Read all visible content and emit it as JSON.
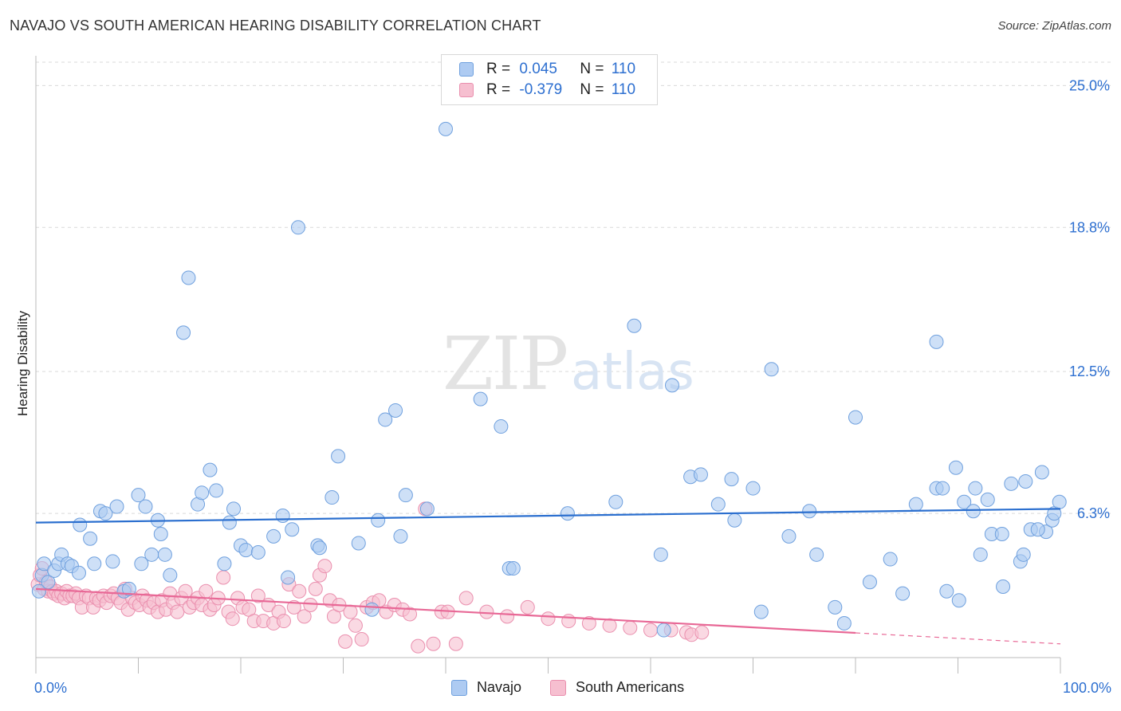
{
  "header": {
    "title": "NAVAJO VS SOUTH AMERICAN HEARING DISABILITY CORRELATION CHART",
    "source": "Source: ZipAtlas.com"
  },
  "watermark": {
    "zip": "ZIP",
    "atlas": "atlas"
  },
  "legend": {
    "rows": [
      {
        "r_label": "R = ",
        "r_value": "0.045",
        "n_label": "N = ",
        "n_value": "110"
      },
      {
        "r_label": "R = ",
        "r_value": "-0.379",
        "n_label": "N = ",
        "n_value": "110"
      }
    ],
    "bottom": [
      "Navajo",
      "South Americans"
    ]
  },
  "colors": {
    "navajo_fill": "#aecbf2",
    "navajo_stroke": "#6fa0de",
    "navajo_line": "#2b6fcf",
    "south_fill": "#f6bfd0",
    "south_stroke": "#ea8fae",
    "south_line": "#e86896",
    "tick_text": "#2d6fd0",
    "grid": "#d9d9d9"
  },
  "chart_data": {
    "type": "scatter",
    "title": "NAVAJO VS SOUTH AMERICAN HEARING DISABILITY CORRELATION CHART",
    "xlabel": "",
    "ylabel": "Hearing Disability",
    "xlim": [
      0,
      100
    ],
    "ylim": [
      0,
      26.3
    ],
    "x_tick_labels": [
      "0.0%",
      "100.0%"
    ],
    "y_ticks": [
      6.3,
      12.5,
      18.8,
      25.0
    ],
    "y_tick_labels": [
      "6.3%",
      "12.5%",
      "18.8%",
      "25.0%"
    ],
    "grid": true,
    "legend_position": "top-center",
    "series": [
      {
        "name": "Navajo",
        "r": 0.045,
        "n": 110,
        "trend": {
          "x": [
            0,
            100
          ],
          "y": [
            5.9,
            6.5
          ],
          "dashed_from": null
        },
        "points": [
          [
            0.3,
            2.9
          ],
          [
            0.6,
            3.6
          ],
          [
            0.8,
            4.1
          ],
          [
            1.2,
            3.3
          ],
          [
            1.8,
            3.8
          ],
          [
            2.2,
            4.1
          ],
          [
            2.5,
            4.5
          ],
          [
            3.1,
            4.1
          ],
          [
            3.5,
            4.0
          ],
          [
            4.2,
            3.7
          ],
          [
            4.3,
            5.8
          ],
          [
            5.3,
            5.2
          ],
          [
            5.7,
            4.1
          ],
          [
            6.3,
            6.4
          ],
          [
            6.8,
            6.3
          ],
          [
            7.5,
            4.2
          ],
          [
            7.9,
            6.6
          ],
          [
            8.6,
            2.9
          ],
          [
            9.1,
            3.0
          ],
          [
            10.0,
            7.1
          ],
          [
            10.3,
            4.1
          ],
          [
            10.7,
            6.6
          ],
          [
            11.3,
            4.5
          ],
          [
            11.9,
            6.0
          ],
          [
            12.2,
            5.4
          ],
          [
            12.6,
            4.5
          ],
          [
            13.1,
            3.6
          ],
          [
            14.4,
            14.2
          ],
          [
            14.9,
            16.6
          ],
          [
            15.8,
            6.7
          ],
          [
            16.2,
            7.2
          ],
          [
            17.0,
            8.2
          ],
          [
            17.6,
            7.3
          ],
          [
            18.4,
            4.1
          ],
          [
            18.9,
            5.9
          ],
          [
            19.3,
            6.5
          ],
          [
            20.0,
            4.9
          ],
          [
            20.5,
            4.7
          ],
          [
            21.7,
            4.6
          ],
          [
            23.2,
            5.3
          ],
          [
            24.1,
            6.2
          ],
          [
            24.6,
            3.5
          ],
          [
            25.0,
            5.6
          ],
          [
            25.6,
            18.8
          ],
          [
            27.5,
            4.9
          ],
          [
            27.7,
            4.8
          ],
          [
            28.9,
            7.0
          ],
          [
            29.5,
            8.8
          ],
          [
            31.5,
            5.0
          ],
          [
            32.8,
            2.1
          ],
          [
            33.4,
            6.0
          ],
          [
            34.1,
            10.4
          ],
          [
            35.1,
            10.8
          ],
          [
            35.6,
            5.3
          ],
          [
            36.1,
            7.1
          ],
          [
            38.2,
            6.5
          ],
          [
            40.0,
            23.1
          ],
          [
            43.4,
            11.3
          ],
          [
            45.4,
            10.1
          ],
          [
            46.2,
            3.9
          ],
          [
            46.6,
            3.9
          ],
          [
            51.9,
            6.3
          ],
          [
            56.6,
            6.8
          ],
          [
            58.4,
            14.5
          ],
          [
            61.0,
            4.5
          ],
          [
            61.3,
            1.2
          ],
          [
            62.1,
            11.9
          ],
          [
            63.9,
            7.9
          ],
          [
            64.9,
            8.0
          ],
          [
            66.6,
            6.7
          ],
          [
            67.9,
            7.8
          ],
          [
            68.2,
            6.0
          ],
          [
            70.0,
            7.4
          ],
          [
            70.8,
            2.0
          ],
          [
            71.8,
            12.6
          ],
          [
            73.5,
            5.3
          ],
          [
            75.5,
            6.4
          ],
          [
            76.2,
            4.5
          ],
          [
            78.0,
            2.2
          ],
          [
            78.9,
            1.5
          ],
          [
            80.0,
            10.5
          ],
          [
            81.4,
            3.3
          ],
          [
            83.4,
            4.3
          ],
          [
            84.6,
            2.8
          ],
          [
            85.9,
            6.7
          ],
          [
            87.9,
            7.4
          ],
          [
            87.9,
            13.8
          ],
          [
            88.5,
            7.4
          ],
          [
            88.9,
            2.9
          ],
          [
            89.8,
            8.3
          ],
          [
            90.1,
            2.5
          ],
          [
            90.6,
            6.8
          ],
          [
            91.5,
            6.4
          ],
          [
            91.7,
            7.4
          ],
          [
            92.2,
            4.5
          ],
          [
            92.9,
            6.9
          ],
          [
            93.3,
            5.4
          ],
          [
            94.3,
            5.4
          ],
          [
            94.4,
            3.1
          ],
          [
            95.2,
            7.6
          ],
          [
            96.1,
            4.2
          ],
          [
            96.4,
            4.5
          ],
          [
            96.6,
            7.7
          ],
          [
            97.1,
            5.6
          ],
          [
            98.6,
            5.5
          ],
          [
            97.8,
            5.6
          ],
          [
            98.2,
            8.1
          ],
          [
            99.2,
            6.0
          ],
          [
            99.4,
            6.3
          ],
          [
            99.9,
            6.8
          ]
        ]
      },
      {
        "name": "South Americans",
        "r": -0.379,
        "n": 110,
        "trend": {
          "x": [
            0,
            100
          ],
          "y": [
            3.0,
            0.6
          ],
          "dashed_from": 80
        },
        "points": [
          [
            0.2,
            3.2
          ],
          [
            0.4,
            3.6
          ],
          [
            0.6,
            3.9
          ],
          [
            0.8,
            3.0
          ],
          [
            1.0,
            3.3
          ],
          [
            1.2,
            2.9
          ],
          [
            1.4,
            3.1
          ],
          [
            1.6,
            2.9
          ],
          [
            1.8,
            2.8
          ],
          [
            2.0,
            2.9
          ],
          [
            2.2,
            2.7
          ],
          [
            2.5,
            2.8
          ],
          [
            2.8,
            2.6
          ],
          [
            3.0,
            2.9
          ],
          [
            3.3,
            2.7
          ],
          [
            3.6,
            2.7
          ],
          [
            3.9,
            2.8
          ],
          [
            4.2,
            2.6
          ],
          [
            4.5,
            2.2
          ],
          [
            4.9,
            2.7
          ],
          [
            5.2,
            2.6
          ],
          [
            5.6,
            2.2
          ],
          [
            5.9,
            2.6
          ],
          [
            6.2,
            2.5
          ],
          [
            6.6,
            2.7
          ],
          [
            6.9,
            2.4
          ],
          [
            7.3,
            2.7
          ],
          [
            7.6,
            2.8
          ],
          [
            8.0,
            2.6
          ],
          [
            8.3,
            2.4
          ],
          [
            8.7,
            3.0
          ],
          [
            9.0,
            2.1
          ],
          [
            9.4,
            2.6
          ],
          [
            9.7,
            2.4
          ],
          [
            10.1,
            2.3
          ],
          [
            10.4,
            2.7
          ],
          [
            10.8,
            2.5
          ],
          [
            11.1,
            2.2
          ],
          [
            11.5,
            2.4
          ],
          [
            11.9,
            2.0
          ],
          [
            12.3,
            2.5
          ],
          [
            12.7,
            2.1
          ],
          [
            13.1,
            2.8
          ],
          [
            13.4,
            2.4
          ],
          [
            13.8,
            2.0
          ],
          [
            14.2,
            2.6
          ],
          [
            14.6,
            2.9
          ],
          [
            15.0,
            2.2
          ],
          [
            15.4,
            2.4
          ],
          [
            15.8,
            2.6
          ],
          [
            16.2,
            2.3
          ],
          [
            16.6,
            2.9
          ],
          [
            17.0,
            2.1
          ],
          [
            17.4,
            2.3
          ],
          [
            17.8,
            2.6
          ],
          [
            18.3,
            3.5
          ],
          [
            18.8,
            2.0
          ],
          [
            19.2,
            1.7
          ],
          [
            19.7,
            2.6
          ],
          [
            20.2,
            2.2
          ],
          [
            20.8,
            2.1
          ],
          [
            21.3,
            1.6
          ],
          [
            21.7,
            2.7
          ],
          [
            22.2,
            1.6
          ],
          [
            22.7,
            2.3
          ],
          [
            23.2,
            1.5
          ],
          [
            23.7,
            2.0
          ],
          [
            24.2,
            1.6
          ],
          [
            24.7,
            3.2
          ],
          [
            25.2,
            2.2
          ],
          [
            25.7,
            2.9
          ],
          [
            26.2,
            1.8
          ],
          [
            26.8,
            2.3
          ],
          [
            27.3,
            3.0
          ],
          [
            27.7,
            3.6
          ],
          [
            28.2,
            4.0
          ],
          [
            28.7,
            2.5
          ],
          [
            29.1,
            1.8
          ],
          [
            29.6,
            2.3
          ],
          [
            30.2,
            0.7
          ],
          [
            30.7,
            2.0
          ],
          [
            31.2,
            1.4
          ],
          [
            31.8,
            0.8
          ],
          [
            32.3,
            2.2
          ],
          [
            32.9,
            2.4
          ],
          [
            33.5,
            2.5
          ],
          [
            34.2,
            2.0
          ],
          [
            35.0,
            2.3
          ],
          [
            35.8,
            2.1
          ],
          [
            36.5,
            1.9
          ],
          [
            37.3,
            0.5
          ],
          [
            38.0,
            6.5
          ],
          [
            38.8,
            0.6
          ],
          [
            39.6,
            2.0
          ],
          [
            40.2,
            2.0
          ],
          [
            41.0,
            0.6
          ],
          [
            42.0,
            2.6
          ],
          [
            44.0,
            2.0
          ],
          [
            46.0,
            1.8
          ],
          [
            48.0,
            2.2
          ],
          [
            50.0,
            1.7
          ],
          [
            52.0,
            1.6
          ],
          [
            54.0,
            1.5
          ],
          [
            56.0,
            1.4
          ],
          [
            58.0,
            1.3
          ],
          [
            60.0,
            1.2
          ],
          [
            62.0,
            1.2
          ],
          [
            63.5,
            1.1
          ],
          [
            64.0,
            1.0
          ],
          [
            65.0,
            1.1
          ]
        ]
      }
    ]
  }
}
